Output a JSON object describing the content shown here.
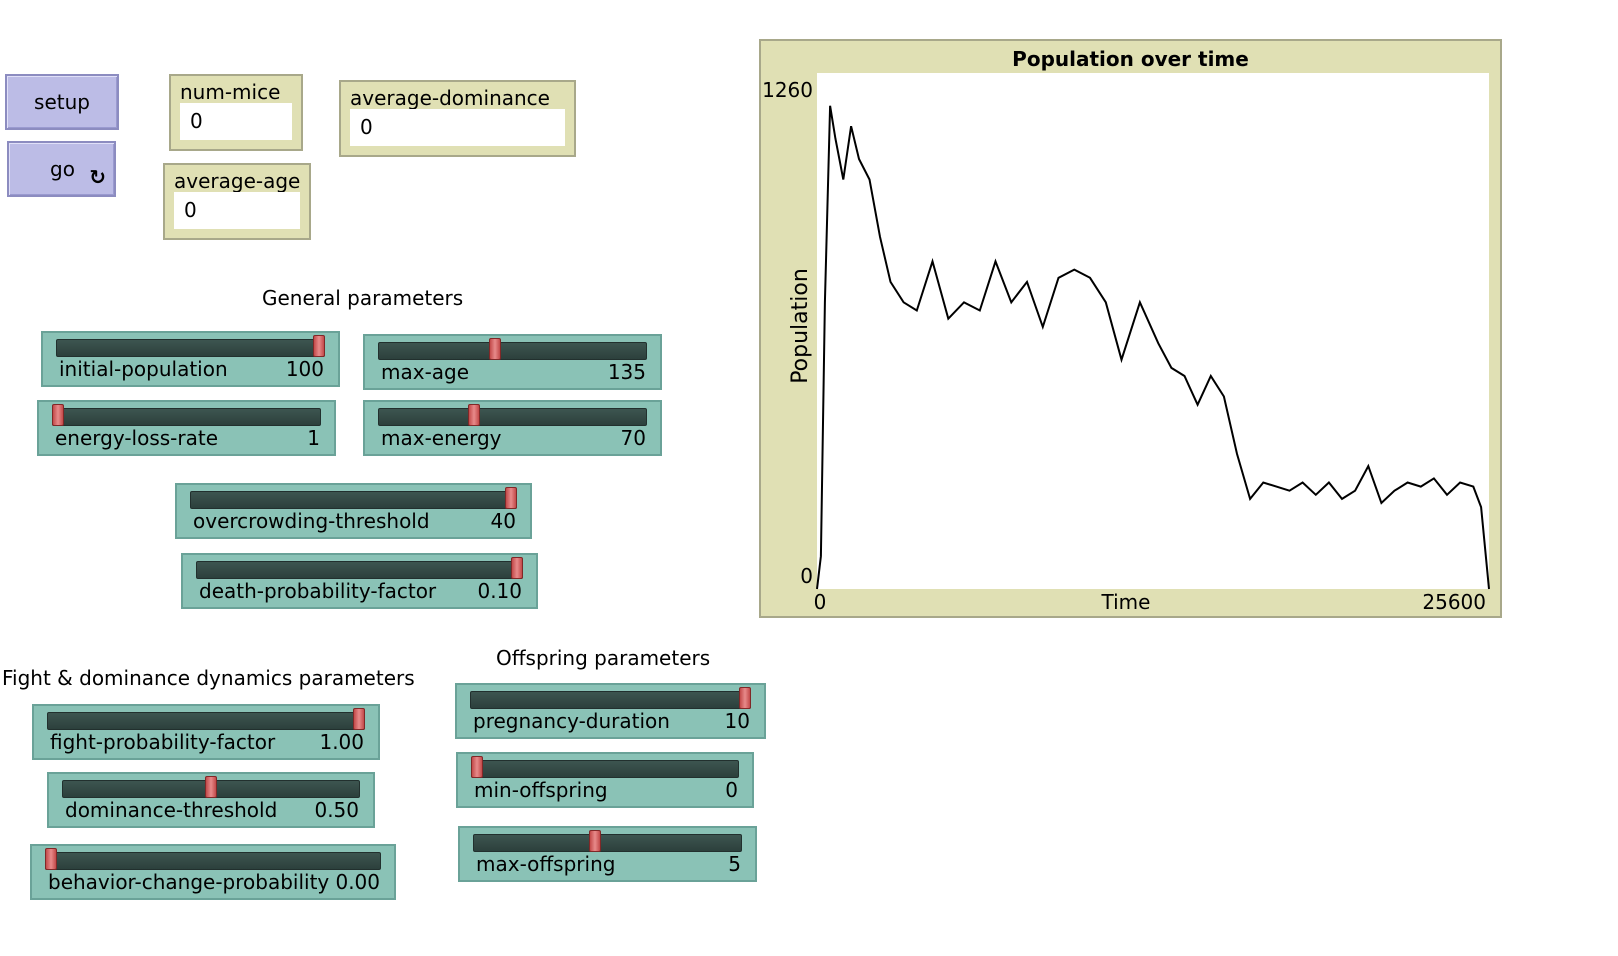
{
  "buttons": {
    "setup": {
      "label": "setup"
    },
    "go": {
      "label": "go",
      "forever_glyph": "↻"
    }
  },
  "monitors": {
    "num_mice": {
      "label": "num-mice",
      "value": "0"
    },
    "average_age": {
      "label": "average-age",
      "value": "0"
    },
    "average_dominance": {
      "label": "average-dominance",
      "value": "0"
    }
  },
  "sections": {
    "general": "General parameters",
    "fight": "Fight & dominance dynamics parameters",
    "offspring": "Offspring parameters"
  },
  "sliders": {
    "initial_population": {
      "label": "initial-population",
      "value": "100",
      "fraction": 1.0
    },
    "max_age": {
      "label": "max-age",
      "value": "135",
      "fraction": 0.43
    },
    "energy_loss_rate": {
      "label": "energy-loss-rate",
      "value": "1",
      "fraction": 0.0
    },
    "max_energy": {
      "label": "max-energy",
      "value": "70",
      "fraction": 0.35
    },
    "overcrowding_threshold": {
      "label": "overcrowding-threshold",
      "value": "40",
      "fraction": 1.0
    },
    "death_probability_factor": {
      "label": "death-probability-factor",
      "value": "0.10",
      "fraction": 1.0
    },
    "fight_probability_factor": {
      "label": "fight-probability-factor",
      "value": "1.00",
      "fraction": 1.0
    },
    "dominance_threshold": {
      "label": "dominance-threshold",
      "value": "0.50",
      "fraction": 0.5
    },
    "behavior_change_probability": {
      "label": "behavior-change-probability",
      "value": "0.00",
      "fraction": 0.0
    },
    "pregnancy_duration": {
      "label": "pregnancy-duration",
      "value": "10",
      "fraction": 1.0
    },
    "min_offspring": {
      "label": "min-offspring",
      "value": "0",
      "fraction": 0.0
    },
    "max_offspring": {
      "label": "max-offspring",
      "value": "5",
      "fraction": 0.45
    }
  },
  "plot": {
    "title": "Population over time",
    "xlabel": "Time",
    "ylabel": "Population",
    "x_min_label": "0",
    "x_max_label": "25600",
    "y_min_label": "0",
    "y_max_label": "1260"
  },
  "chart_data": {
    "type": "line",
    "title": "Population over time",
    "xlabel": "Time",
    "ylabel": "Population",
    "xlim": [
      0,
      25600
    ],
    "ylim": [
      0,
      1260
    ],
    "series": [
      {
        "color": "#000000",
        "x": [
          0,
          150,
          300,
          500,
          700,
          1000,
          1300,
          1600,
          2000,
          2400,
          2800,
          3300,
          3800,
          4400,
          5000,
          5600,
          6200,
          6800,
          7400,
          8000,
          8600,
          9200,
          9800,
          10400,
          11000,
          11600,
          12300,
          13000,
          13500,
          14000,
          14500,
          15000,
          15500,
          16000,
          16500,
          17000,
          17500,
          18000,
          18500,
          19000,
          19500,
          20000,
          20500,
          21000,
          21500,
          22000,
          22500,
          23000,
          23500,
          24000,
          24500,
          25000,
          25300,
          25600
        ],
        "values": [
          0,
          80,
          700,
          1180,
          1100,
          1000,
          1130,
          1050,
          1000,
          860,
          750,
          700,
          680,
          800,
          660,
          700,
          680,
          800,
          700,
          750,
          640,
          760,
          780,
          760,
          700,
          560,
          700,
          600,
          540,
          520,
          450,
          520,
          470,
          330,
          220,
          260,
          250,
          240,
          260,
          230,
          260,
          220,
          240,
          300,
          210,
          240,
          260,
          250,
          270,
          230,
          260,
          250,
          200,
          0
        ]
      }
    ]
  }
}
